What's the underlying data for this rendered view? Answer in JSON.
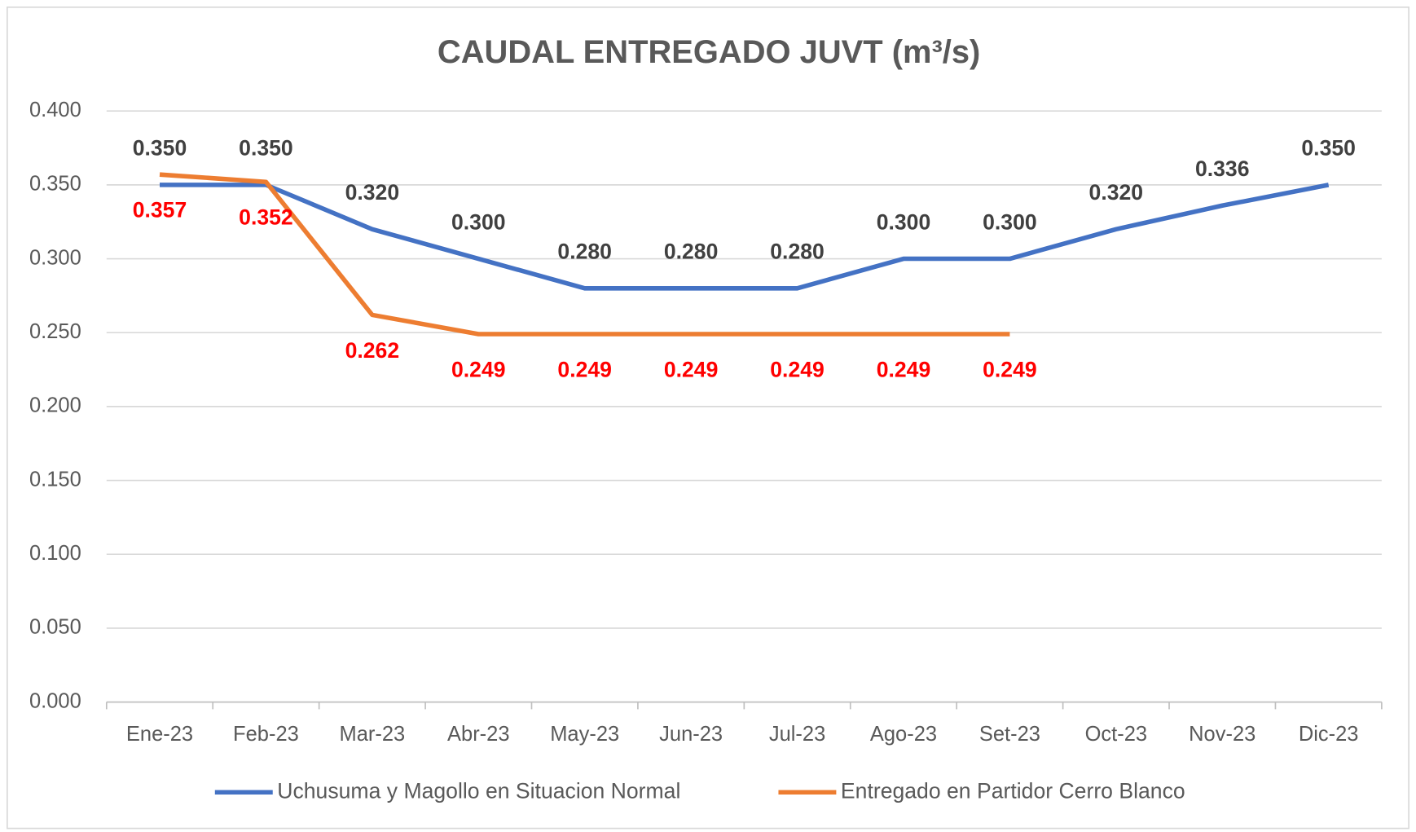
{
  "chart_data": {
    "type": "line",
    "title": "CAUDAL ENTREGADO JUVT (m³/s)",
    "categories": [
      "Ene-23",
      "Feb-23",
      "Mar-23",
      "Abr-23",
      "May-23",
      "Jun-23",
      "Jul-23",
      "Ago-23",
      "Set-23",
      "Oct-23",
      "Nov-23",
      "Dic-23"
    ],
    "series": [
      {
        "name": "Uchusuma y Magollo en Situacion Normal",
        "color": "#4472c4",
        "values": [
          0.35,
          0.35,
          0.32,
          0.3,
          0.28,
          0.28,
          0.28,
          0.3,
          0.3,
          0.32,
          0.336,
          0.35
        ],
        "value_labels": [
          "0.350",
          "0.350",
          "0.320",
          "0.300",
          "0.280",
          "0.280",
          "0.280",
          "0.300",
          "0.300",
          "0.320",
          "0.336",
          "0.350"
        ],
        "label_color": "#404040"
      },
      {
        "name": "Entregado en Partidor Cerro Blanco",
        "color": "#ed7d31",
        "values": [
          0.357,
          0.352,
          0.262,
          0.249,
          0.249,
          0.249,
          0.249,
          0.249,
          0.249,
          null,
          null,
          null
        ],
        "value_labels": [
          "0.357",
          "0.352",
          "0.262",
          "0.249",
          "0.249",
          "0.249",
          "0.249",
          "0.249",
          "0.249",
          null,
          null,
          null
        ],
        "label_color": "#ff0000"
      }
    ],
    "ylim": [
      0,
      0.4
    ],
    "yticks": [
      {
        "value": 0,
        "label": "0.000"
      },
      {
        "value": 0.05,
        "label": "0.050"
      },
      {
        "value": 0.1,
        "label": "0.100"
      },
      {
        "value": 0.15,
        "label": "0.150"
      },
      {
        "value": 0.2,
        "label": "0.200"
      },
      {
        "value": 0.25,
        "label": "0.250"
      },
      {
        "value": 0.3,
        "label": "0.300"
      },
      {
        "value": 0.35,
        "label": "0.350"
      },
      {
        "value": 0.4,
        "label": "0.400"
      }
    ],
    "grid": true,
    "legend": "bottom"
  }
}
